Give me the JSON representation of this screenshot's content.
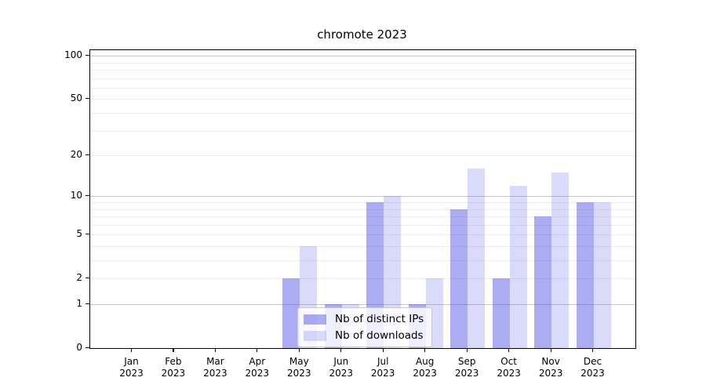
{
  "chart_data": {
    "type": "bar",
    "title": "chromote 2023",
    "xlabel": "",
    "ylabel": "",
    "yscale": "log1p",
    "ylim": [
      0,
      109
    ],
    "yticks": [
      0,
      1,
      2,
      5,
      10,
      20,
      50,
      100
    ],
    "major_gridlines": [
      1,
      10,
      100
    ],
    "minor_gridlines": [
      2,
      3,
      4,
      5,
      6,
      7,
      8,
      9,
      20,
      30,
      40,
      50,
      60,
      70,
      80,
      90
    ],
    "categories": [
      {
        "month": "Jan",
        "year": "2023"
      },
      {
        "month": "Feb",
        "year": "2023"
      },
      {
        "month": "Mar",
        "year": "2023"
      },
      {
        "month": "Apr",
        "year": "2023"
      },
      {
        "month": "May",
        "year": "2023"
      },
      {
        "month": "Jun",
        "year": "2023"
      },
      {
        "month": "Jul",
        "year": "2023"
      },
      {
        "month": "Aug",
        "year": "2023"
      },
      {
        "month": "Sep",
        "year": "2023"
      },
      {
        "month": "Oct",
        "year": "2023"
      },
      {
        "month": "Nov",
        "year": "2023"
      },
      {
        "month": "Dec",
        "year": "2023"
      }
    ],
    "series": [
      {
        "name": "Nb of distinct IPs",
        "color": "rgba(72,72,229,0.45)",
        "values": [
          0,
          0,
          0,
          0,
          2,
          1,
          9,
          1,
          8,
          2,
          7,
          9
        ]
      },
      {
        "name": "Nb of downloads",
        "color": "rgba(72,72,229,0.20)",
        "values": [
          0,
          0,
          0,
          0,
          4,
          1,
          10,
          2,
          16,
          12,
          15,
          9
        ]
      }
    ],
    "legend_position": "lower center",
    "grid": true
  }
}
